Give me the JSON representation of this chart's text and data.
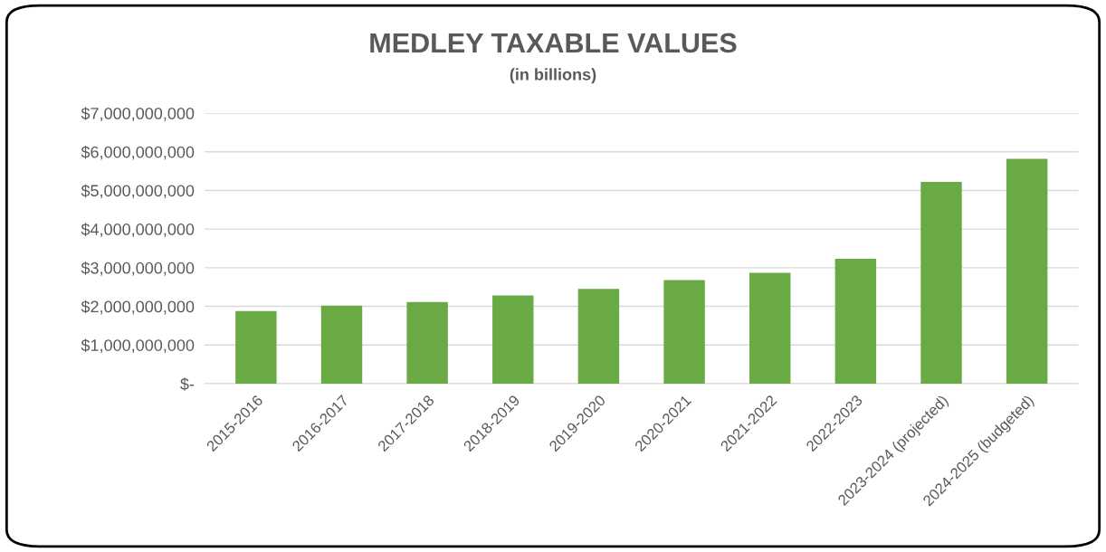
{
  "chart_data": {
    "type": "bar",
    "title": "MEDLEY TAXABLE VALUES",
    "subtitle": "(in billions)",
    "categories": [
      "2015-2016",
      "2016-2017",
      "2017-2018",
      "2018-2019",
      "2019-2020",
      "2020-2021",
      "2021-2022",
      "2022-2023",
      "2023-2024 (projected)",
      "2024-2025 (budgeted)"
    ],
    "values": [
      1880000000,
      2020000000,
      2110000000,
      2280000000,
      2450000000,
      2680000000,
      2870000000,
      3230000000,
      5220000000,
      5820000000
    ],
    "color": "#6aaa45",
    "ylim": [
      0,
      7000000000
    ],
    "yticks": [
      {
        "value": 0,
        "label": "$-"
      },
      {
        "value": 1000000000,
        "label": "$1,000,000,000"
      },
      {
        "value": 2000000000,
        "label": "$2,000,000,000"
      },
      {
        "value": 3000000000,
        "label": "$3,000,000,000"
      },
      {
        "value": 4000000000,
        "label": "$4,000,000,000"
      },
      {
        "value": 5000000000,
        "label": "$5,000,000,000"
      },
      {
        "value": 6000000000,
        "label": "$6,000,000,000"
      },
      {
        "value": 7000000000,
        "label": "$7,000,000,000"
      }
    ],
    "grid": "y"
  }
}
